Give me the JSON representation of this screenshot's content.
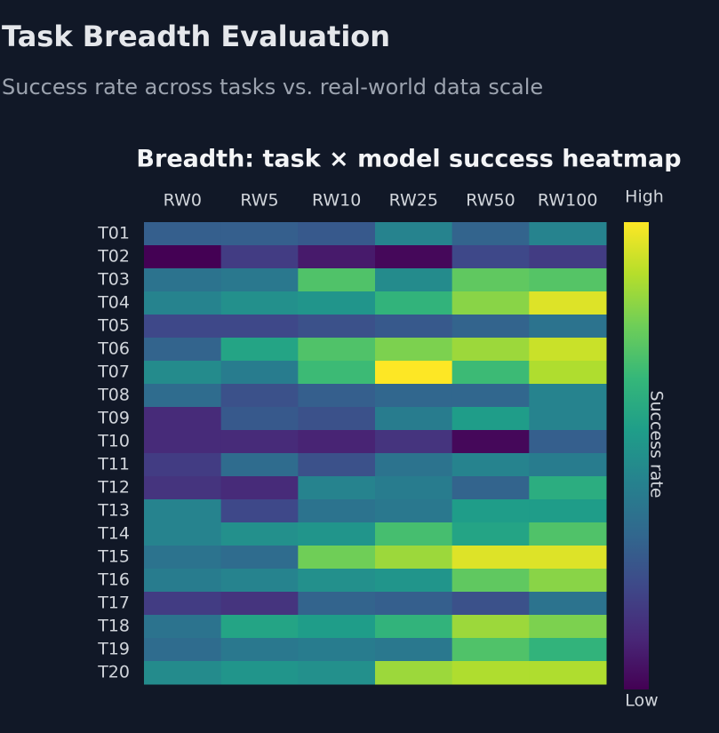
{
  "page": {
    "title": "Task Breadth Evaluation",
    "subtitle": "Success rate across tasks vs. real-world data scale"
  },
  "chart_data": {
    "type": "heatmap",
    "title": "Breadth: task × model success heatmap",
    "x": [
      "RW0",
      "RW5",
      "RW10",
      "RW25",
      "RW50",
      "RW100"
    ],
    "y": [
      "T01",
      "T02",
      "T03",
      "T04",
      "T05",
      "T06",
      "T07",
      "T08",
      "T09",
      "T10",
      "T11",
      "T12",
      "T13",
      "T14",
      "T15",
      "T16",
      "T17",
      "T18",
      "T19",
      "T20"
    ],
    "z": [
      [
        0.3,
        0.3,
        0.28,
        0.45,
        0.32,
        0.45
      ],
      [
        0.0,
        0.18,
        0.07,
        0.02,
        0.22,
        0.18
      ],
      [
        0.38,
        0.4,
        0.72,
        0.48,
        0.75,
        0.73
      ],
      [
        0.45,
        0.5,
        0.52,
        0.65,
        0.82,
        0.95
      ],
      [
        0.22,
        0.22,
        0.25,
        0.28,
        0.32,
        0.38
      ],
      [
        0.32,
        0.58,
        0.72,
        0.8,
        0.85,
        0.92
      ],
      [
        0.48,
        0.42,
        0.68,
        1.0,
        0.68,
        0.88
      ],
      [
        0.35,
        0.25,
        0.3,
        0.33,
        0.33,
        0.45
      ],
      [
        0.12,
        0.28,
        0.25,
        0.42,
        0.55,
        0.45
      ],
      [
        0.12,
        0.12,
        0.1,
        0.15,
        0.02,
        0.3
      ],
      [
        0.18,
        0.35,
        0.25,
        0.38,
        0.45,
        0.42
      ],
      [
        0.15,
        0.12,
        0.45,
        0.42,
        0.32,
        0.62
      ],
      [
        0.45,
        0.22,
        0.38,
        0.4,
        0.55,
        0.55
      ],
      [
        0.45,
        0.5,
        0.52,
        0.7,
        0.58,
        0.72
      ],
      [
        0.38,
        0.35,
        0.78,
        0.85,
        0.95,
        0.95
      ],
      [
        0.42,
        0.45,
        0.5,
        0.52,
        0.75,
        0.82
      ],
      [
        0.18,
        0.15,
        0.32,
        0.3,
        0.25,
        0.38
      ],
      [
        0.38,
        0.58,
        0.55,
        0.65,
        0.85,
        0.8
      ],
      [
        0.35,
        0.4,
        0.42,
        0.4,
        0.72,
        0.65
      ],
      [
        0.48,
        0.52,
        0.5,
        0.85,
        0.88,
        0.88
      ]
    ],
    "zlim": [
      0,
      1
    ],
    "colorscale": "viridis",
    "colorbar_title": "Success rate",
    "colorbar_high": "High",
    "colorbar_low": "Low"
  }
}
